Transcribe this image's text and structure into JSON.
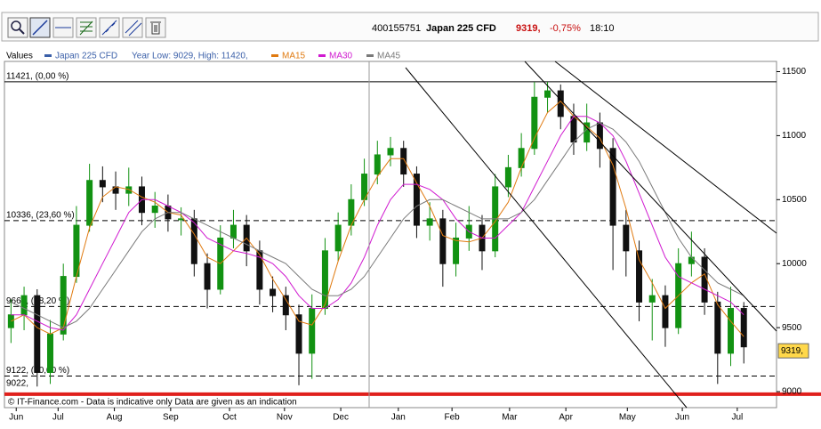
{
  "header": {
    "id": "400155751",
    "change": "-0,75%",
    "time": "18:10"
  },
  "chart_data": {
    "type": "candlestick",
    "legend_title": "Values",
    "legend_note": "Year Low: 9029, High: 11420,",
    "footer": "© IT-Finance.com - Data is indicative only Data are given as an indication",
    "xlim": [
      0,
      59
    ],
    "ylim": [
      8875,
      11580
    ],
    "xticks": [
      {
        "value": 0.9,
        "label": "Jun"
      },
      {
        "value": 4.1,
        "label": "Jul"
      },
      {
        "value": 8.4,
        "label": "Aug"
      },
      {
        "value": 12.7,
        "label": "Sep"
      },
      {
        "value": 17.2,
        "label": "Oct"
      },
      {
        "value": 21.4,
        "label": "Nov"
      },
      {
        "value": 25.7,
        "label": "Dec"
      },
      {
        "value": 30.1,
        "label": "Jan"
      },
      {
        "value": 34.2,
        "label": "Feb"
      },
      {
        "value": 38.6,
        "label": "Mar"
      },
      {
        "value": 42.9,
        "label": "Apr"
      },
      {
        "value": 47.6,
        "label": "May"
      },
      {
        "value": 51.8,
        "label": "Jun"
      },
      {
        "value": 56.0,
        "label": "Jul"
      }
    ],
    "yticks": [
      9000,
      9500,
      10000,
      10500,
      11000,
      11500
    ],
    "levels": [
      {
        "value": 11421,
        "label": "11421, (0,00 %)",
        "style": "solid",
        "color": "#000000"
      },
      {
        "value": 10336,
        "label": "10336, (23,60 %)",
        "style": "dashed",
        "color": "#000000"
      },
      {
        "value": 9665,
        "label": "9665, (38,20 %)",
        "style": "dashed",
        "color": "#000000"
      },
      {
        "value": 9122,
        "label": "9122, (50,00 %)",
        "style": "dashed",
        "color": "#000000"
      },
      {
        "value": 9022,
        "label": "9022,",
        "style": "thick",
        "color": "#e0201c"
      }
    ],
    "last": {
      "value": 9319,
      "label": "9319,",
      "color": "#ffd84a"
    },
    "x": [
      0.5,
      1.5,
      2.5,
      3.5,
      4.5,
      5.5,
      6.5,
      7.5,
      8.5,
      9.5,
      10.5,
      11.5,
      12.5,
      13.5,
      14.5,
      15.5,
      16.5,
      17.5,
      18.5,
      19.5,
      20.5,
      21.5,
      22.5,
      23.5,
      24.5,
      25.5,
      26.5,
      27.5,
      28.5,
      29.5,
      30.5,
      31.5,
      32.5,
      33.5,
      34.5,
      35.5,
      36.5,
      37.5,
      38.5,
      39.5,
      40.5,
      41.5,
      42.5,
      43.5,
      44.5,
      45.5,
      46.5,
      47.5,
      48.5,
      49.5,
      50.5,
      51.5,
      52.5,
      53.5,
      54.5,
      55.5,
      56.5
    ],
    "series": [
      {
        "name": "Japan 225 CFD",
        "color": "#3a5fa8",
        "up_color": "#129212",
        "down_color": "#111111",
        "open": [
          9500,
          9600,
          9750,
          9150,
          9450,
          9900,
          10300,
          10650,
          10600,
          10550,
          10600,
          10400,
          10450,
          10350,
          10350,
          10000,
          9800,
          10200,
          10300,
          10100,
          9800,
          9750,
          9600,
          9300,
          9650,
          10100,
          10300,
          10500,
          10700,
          10850,
          10900,
          10700,
          10300,
          10350,
          10000,
          10200,
          10300,
          10100,
          10600,
          10750,
          10900,
          11300,
          11350,
          11150,
          10950,
          11100,
          10900,
          10300,
          10100,
          9700,
          9750,
          9500,
          10000,
          10050,
          9700,
          9300,
          9650
        ],
        "high": [
          9720,
          9820,
          9800,
          9560,
          10000,
          10450,
          10780,
          10760,
          10720,
          10750,
          10680,
          10560,
          10540,
          10440,
          10420,
          10080,
          10300,
          10420,
          10380,
          10180,
          9900,
          9820,
          9680,
          9760,
          10200,
          10400,
          10620,
          10820,
          10960,
          10990,
          10960,
          10760,
          10480,
          10420,
          10320,
          10450,
          10380,
          10700,
          10850,
          11020,
          11420,
          11420,
          11400,
          11250,
          11250,
          11180,
          10980,
          10420,
          10180,
          9880,
          9830,
          10120,
          10250,
          10120,
          9780,
          9820,
          9700
        ],
        "low": [
          9380,
          9480,
          9040,
          9060,
          9400,
          9850,
          10250,
          10480,
          10420,
          10450,
          10300,
          10280,
          10250,
          10220,
          9900,
          9650,
          9760,
          10120,
          9980,
          9680,
          9620,
          9480,
          9050,
          9100,
          9600,
          10020,
          10220,
          10450,
          10620,
          10760,
          10600,
          10200,
          10180,
          9820,
          9900,
          10100,
          9950,
          10050,
          10520,
          10680,
          10850,
          11180,
          11050,
          10850,
          10880,
          10750,
          9950,
          9900,
          9550,
          9400,
          9350,
          9450,
          9900,
          9600,
          9060,
          9200,
          9220
        ],
        "close": [
          9600,
          9750,
          9150,
          9450,
          9900,
          10300,
          10650,
          10600,
          10550,
          10600,
          10400,
          10450,
          10350,
          10350,
          10000,
          9800,
          10200,
          10300,
          10100,
          9800,
          9750,
          9600,
          9300,
          9650,
          10100,
          10300,
          10500,
          10700,
          10850,
          10900,
          10700,
          10300,
          10350,
          10000,
          10200,
          10300,
          10100,
          10600,
          10750,
          10900,
          11300,
          11350,
          11150,
          10950,
          11100,
          10900,
          10300,
          10100,
          9700,
          9750,
          9500,
          10000,
          10050,
          9700,
          9300,
          9650,
          9350
        ]
      },
      {
        "name": "MA15",
        "color": "#e07a10",
        "values": [
          9550,
          9600,
          9500,
          9450,
          9500,
          9900,
          10280,
          10520,
          10600,
          10580,
          10520,
          10480,
          10400,
          10380,
          10230,
          10050,
          10000,
          10100,
          10200,
          10070,
          9880,
          9720,
          9550,
          9520,
          9680,
          10020,
          10300,
          10500,
          10680,
          10820,
          10820,
          10630,
          10450,
          10220,
          10180,
          10170,
          10200,
          10330,
          10480,
          10750,
          10980,
          11180,
          11270,
          11150,
          11070,
          10980,
          10770,
          10430,
          10030,
          9850,
          9650,
          9750,
          9850,
          9920,
          9680,
          9550,
          9430
        ]
      },
      {
        "name": "MA30",
        "color": "#d01ad0",
        "values": [
          9600,
          9600,
          9550,
          9500,
          9480,
          9600,
          9800,
          10000,
          10200,
          10400,
          10500,
          10500,
          10450,
          10400,
          10320,
          10200,
          10150,
          10100,
          10080,
          10050,
          10000,
          9900,
          9750,
          9650,
          9650,
          9720,
          9850,
          10050,
          10300,
          10500,
          10620,
          10620,
          10580,
          10500,
          10350,
          10250,
          10200,
          10200,
          10300,
          10400,
          10600,
          10800,
          11000,
          11150,
          11150,
          11100,
          11000,
          10800,
          10550,
          10300,
          10050,
          9900,
          9850,
          9800,
          9750,
          9700,
          9600
        ]
      },
      {
        "name": "MA45",
        "color": "#7a7a7a",
        "values": [
          9700,
          9650,
          9600,
          9550,
          9500,
          9550,
          9650,
          9800,
          9950,
          10100,
          10250,
          10350,
          10400,
          10400,
          10350,
          10300,
          10250,
          10200,
          10150,
          10100,
          10050,
          10000,
          9900,
          9800,
          9750,
          9750,
          9800,
          9900,
          10050,
          10200,
          10350,
          10450,
          10500,
          10500,
          10450,
          10400,
          10350,
          10350,
          10350,
          10400,
          10500,
          10650,
          10800,
          10950,
          11050,
          11100,
          11050,
          10950,
          10800,
          10600,
          10400,
          10200,
          10050,
          9950,
          9850,
          9800,
          9750
        ]
      }
    ]
  }
}
